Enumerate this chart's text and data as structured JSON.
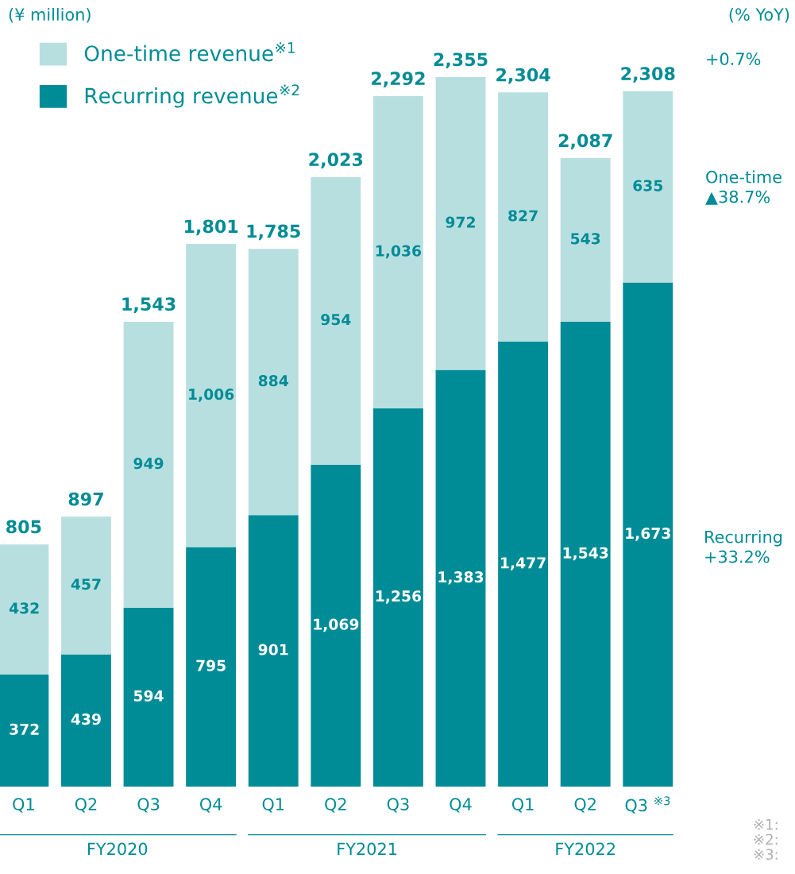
{
  "chart_data": {
    "type": "bar",
    "stacked": true,
    "legend": "top left",
    "grid": false,
    "categories": [
      "Q1",
      "Q2",
      "Q3",
      "Q4",
      "Q1",
      "Q2",
      "Q3",
      "Q4",
      "Q1",
      "Q2",
      "Q3 $^{※3}$"
    ],
    "series": [
      {
        "name": "Recurring revenue$^{※2}$",
        "color": "#008c96",
        "values": [
          372,
          439,
          594,
          795,
          901,
          1069,
          1256,
          1383,
          1477,
          1543,
          1673
        ],
        "value_labels": [
          "372",
          "439",
          "594",
          "795",
          "901",
          "1,069",
          "1,256",
          "1,383",
          "1,477",
          "1,543",
          "1,673"
        ]
      },
      {
        "name": "One-time revenue$^{※1}$",
        "color": "#b8dfe0",
        "values": [
          432,
          457,
          949,
          1006,
          884,
          954,
          1036,
          972,
          827,
          543,
          635
        ],
        "value_labels": [
          "432",
          "457",
          "949",
          "1,006",
          "884",
          "954",
          "1,036",
          "972",
          "827",
          "543",
          "635"
        ]
      }
    ],
    "totals": [
      "805",
      "897",
      "1,543",
      "1,801",
      "1,785",
      "2,023",
      "2,292",
      "2,355",
      "2,304",
      "2,087",
      "2,308"
    ],
    "annotations": [
      "(¥ million)",
      "(% YoY)",
      "+0.7%",
      "One-time\n▲38.7%",
      "Recurring\n+33.2%",
      "FY2020",
      "FY2021",
      "FY2022",
      "※1:\n※2:\n※3:"
    ]
  }
}
